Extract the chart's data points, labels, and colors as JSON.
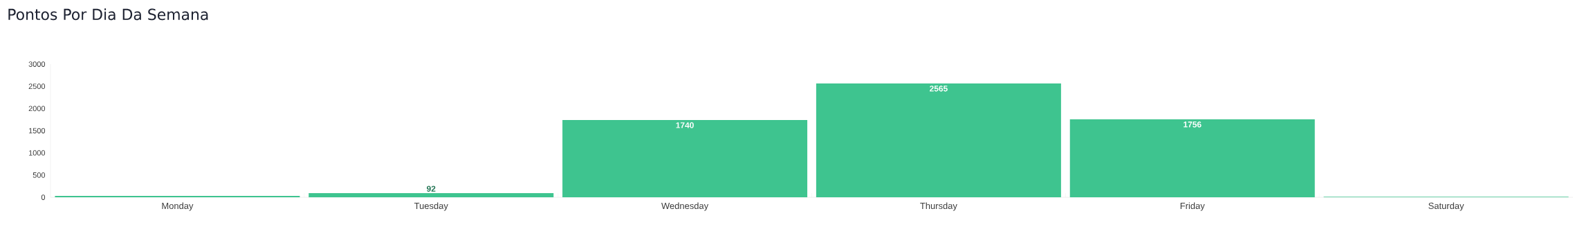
{
  "chart_data": {
    "type": "bar",
    "title": "Pontos Por Dia Da Semana",
    "categories": [
      "Monday",
      "Tuesday",
      "Wednesday",
      "Thursday",
      "Friday",
      "Saturday"
    ],
    "values": [
      30,
      92,
      1740,
      2565,
      1756,
      10
    ],
    "value_labels": [
      null,
      "92",
      "1740",
      "2565",
      "1756",
      null
    ],
    "color": "#3ec48f",
    "ylim": [
      0,
      3000
    ],
    "yticks": [
      0,
      500,
      1000,
      1500,
      2000,
      2500,
      3000
    ],
    "marker": "none"
  }
}
